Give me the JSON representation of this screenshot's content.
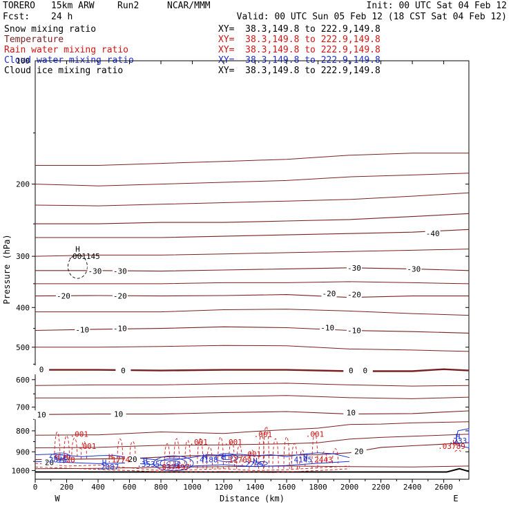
{
  "header": {
    "model": "TORERO",
    "resolution": "15km ARW",
    "run": "Run2",
    "org": "NCAR/MMM",
    "init": "Init: 00 UTC Sat 04 Feb 12",
    "fcst_label": "Fcst:",
    "fcst_value": "24 h",
    "valid": "Valid: 00 UTC Sun 05 Feb 12 (18 CST Sat 04 Feb 12)"
  },
  "legend": [
    {
      "name": "Snow mixing ratio",
      "xy": "XY=  38.3,149.8 to 222.9,149.8",
      "color": "#000000"
    },
    {
      "name": "Temperature",
      "xy": "XY=  38.3,149.8 to 222.9,149.8",
      "color": "#7a1f1f"
    },
    {
      "name": "Rain water mixing ratio",
      "xy": "XY=  38.3,149.8 to 222.9,149.8",
      "color": "#d01414"
    },
    {
      "name": "Cloud water mixing ratio",
      "xy": "XY=  38.3,149.8 to 222.9,149.8",
      "color": "#1b2fd1"
    },
    {
      "name": "Cloud ice mixing ratio",
      "xy": "XY=  38.3,149.8 to 222.9,149.8",
      "color": "#000000"
    }
  ],
  "chart_data": {
    "type": "line",
    "xlabel": "Distance (km)",
    "ylabel": "Pressure (hPa)",
    "xlim": [
      0,
      2760
    ],
    "ylim": [
      1050,
      100
    ],
    "y_scale": "log",
    "x_ticks": [
      0,
      200,
      400,
      600,
      800,
      1000,
      1200,
      1400,
      1600,
      1800,
      2000,
      2200,
      2400,
      2600
    ],
    "y_ticks": [
      200,
      300,
      400,
      500,
      600,
      700,
      800,
      900,
      1000
    ],
    "y_top_label": "100",
    "x_end_labels": {
      "left": "W",
      "right": "E"
    },
    "temperature_isotherms": [
      {
        "temp": -50,
        "points": [
          [
            0,
            250
          ],
          [
            400,
            250
          ],
          [
            800,
            248
          ],
          [
            1200,
            248
          ],
          [
            1600,
            246
          ],
          [
            2000,
            244
          ],
          [
            2400,
            240
          ],
          [
            2760,
            236
          ]
        ]
      },
      {
        "temp": -40,
        "points": [
          [
            0,
            270
          ],
          [
            400,
            270
          ],
          [
            800,
            270
          ],
          [
            1200,
            268
          ],
          [
            1600,
            266
          ],
          [
            2000,
            264
          ],
          [
            2400,
            262
          ],
          [
            2760,
            258
          ]
        ]
      },
      {
        "temp": -30,
        "points": [
          [
            0,
            325
          ],
          [
            400,
            325
          ],
          [
            800,
            326
          ],
          [
            1200,
            324
          ],
          [
            1600,
            322
          ],
          [
            2000,
            320
          ],
          [
            2400,
            322
          ],
          [
            2760,
            325
          ]
        ]
      },
      {
        "temp": -20,
        "points": [
          [
            0,
            375
          ],
          [
            400,
            374
          ],
          [
            800,
            375
          ],
          [
            1200,
            374
          ],
          [
            1600,
            372
          ],
          [
            2000,
            378
          ],
          [
            2400,
            375
          ],
          [
            2760,
            375
          ]
        ]
      },
      {
        "temp": -10,
        "points": [
          [
            0,
            455
          ],
          [
            400,
            452
          ],
          [
            800,
            450
          ],
          [
            1200,
            446
          ],
          [
            1600,
            448
          ],
          [
            2000,
            455
          ],
          [
            2400,
            458
          ],
          [
            2760,
            462
          ]
        ]
      },
      {
        "temp": 0,
        "points": [
          [
            0,
            568
          ],
          [
            400,
            568
          ],
          [
            800,
            570
          ],
          [
            1200,
            568
          ],
          [
            1600,
            568
          ],
          [
            2000,
            572
          ],
          [
            2400,
            572
          ],
          [
            2600,
            566
          ],
          [
            2760,
            570
          ]
        ]
      },
      {
        "temp": 10,
        "points": [
          [
            0,
            730
          ],
          [
            400,
            728
          ],
          [
            800,
            728
          ],
          [
            1200,
            722
          ],
          [
            1600,
            718
          ],
          [
            2000,
            728
          ],
          [
            2400,
            726
          ],
          [
            2760,
            715
          ]
        ]
      },
      {
        "temp": 20,
        "points": [
          [
            0,
            940
          ],
          [
            600,
            935
          ],
          [
            1000,
            920
          ],
          [
            1400,
            920
          ],
          [
            1800,
            915
          ],
          [
            2000,
            905
          ],
          [
            2200,
            878
          ],
          [
            2400,
            870
          ],
          [
            2600,
            862
          ],
          [
            2760,
            855
          ]
        ]
      }
    ],
    "other_isotherms": [
      {
        "points": [
          [
            0,
            180
          ],
          [
            400,
            180
          ],
          [
            800,
            178
          ],
          [
            1200,
            176
          ],
          [
            1600,
            174
          ],
          [
            2000,
            170
          ],
          [
            2400,
            168
          ],
          [
            2760,
            168
          ]
        ]
      },
      {
        "points": [
          [
            0,
            200
          ],
          [
            400,
            202
          ],
          [
            800,
            200
          ],
          [
            1200,
            198
          ],
          [
            1600,
            196
          ],
          [
            2000,
            192
          ],
          [
            2400,
            190
          ],
          [
            2760,
            188
          ]
        ]
      },
      {
        "points": [
          [
            0,
            225
          ],
          [
            400,
            226
          ],
          [
            800,
            224
          ],
          [
            1200,
            222
          ],
          [
            1600,
            220
          ],
          [
            2000,
            218
          ],
          [
            2400,
            214
          ],
          [
            2760,
            210
          ]
        ]
      },
      {
        "points": [
          [
            0,
            300
          ],
          [
            400,
            298
          ],
          [
            800,
            298
          ],
          [
            1200,
            296
          ],
          [
            1600,
            294
          ],
          [
            2000,
            292
          ],
          [
            2400,
            290
          ],
          [
            2760,
            288
          ]
        ]
      },
      {
        "points": [
          [
            0,
            350
          ],
          [
            400,
            350
          ],
          [
            800,
            350
          ],
          [
            1200,
            348
          ],
          [
            1600,
            348
          ],
          [
            2000,
            346
          ],
          [
            2400,
            348
          ],
          [
            2760,
            350
          ]
        ]
      },
      {
        "points": [
          [
            0,
            410
          ],
          [
            400,
            410
          ],
          [
            800,
            410
          ],
          [
            1200,
            405
          ],
          [
            1600,
            404
          ],
          [
            2000,
            408
          ],
          [
            2400,
            414
          ],
          [
            2760,
            418
          ]
        ]
      },
      {
        "points": [
          [
            0,
            500
          ],
          [
            400,
            500
          ],
          [
            800,
            498
          ],
          [
            1200,
            495
          ],
          [
            1600,
            496
          ],
          [
            2000,
            505
          ],
          [
            2400,
            508
          ],
          [
            2760,
            512
          ]
        ]
      },
      {
        "points": [
          [
            0,
            620
          ],
          [
            400,
            618
          ],
          [
            800,
            618
          ],
          [
            1200,
            614
          ],
          [
            1600,
            612
          ],
          [
            2000,
            618
          ],
          [
            2400,
            622
          ],
          [
            2760,
            620
          ]
        ]
      },
      {
        "points": [
          [
            0,
            665
          ],
          [
            400,
            665
          ],
          [
            800,
            664
          ],
          [
            1200,
            660
          ],
          [
            1600,
            656
          ],
          [
            2000,
            664
          ],
          [
            2400,
            668
          ],
          [
            2760,
            662
          ]
        ]
      },
      {
        "points": [
          [
            0,
            820
          ],
          [
            400,
            818
          ],
          [
            800,
            805
          ],
          [
            1000,
            808
          ],
          [
            1200,
            812
          ],
          [
            1400,
            802
          ],
          [
            1600,
            795
          ],
          [
            1800,
            788
          ],
          [
            2000,
            772
          ],
          [
            2200,
            770
          ],
          [
            2400,
            765
          ],
          [
            2760,
            760
          ]
        ]
      },
      {
        "points": [
          [
            0,
            880
          ],
          [
            400,
            878
          ],
          [
            800,
            868
          ],
          [
            1200,
            866
          ],
          [
            1600,
            860
          ],
          [
            1800,
            855
          ],
          [
            2000,
            838
          ],
          [
            2200,
            830
          ],
          [
            2400,
            825
          ],
          [
            2760,
            815
          ]
        ]
      },
      {
        "points": [
          [
            0,
            990
          ],
          [
            400,
            988
          ],
          [
            800,
            982
          ],
          [
            1200,
            978
          ],
          [
            1600,
            975
          ],
          [
            2000,
            978
          ],
          [
            2400,
            980
          ],
          [
            2760,
            975
          ]
        ]
      }
    ],
    "temp_labels": [
      {
        "text": "-30",
        "x": 380,
        "p": 326
      },
      {
        "text": "-30",
        "x": 540,
        "p": 326
      },
      {
        "text": "-30",
        "x": 2030,
        "p": 320
      },
      {
        "text": "-30",
        "x": 2410,
        "p": 322
      },
      {
        "text": "-40",
        "x": 2530,
        "p": 264
      },
      {
        "text": "-20",
        "x": 180,
        "p": 375
      },
      {
        "text": "-20",
        "x": 540,
        "p": 375
      },
      {
        "text": "-20",
        "x": 1870,
        "p": 370
      },
      {
        "text": "-20",
        "x": 2030,
        "p": 372
      },
      {
        "text": "-10",
        "x": 300,
        "p": 453
      },
      {
        "text": "-10",
        "x": 540,
        "p": 450
      },
      {
        "text": "-10",
        "x": 1860,
        "p": 448
      },
      {
        "text": "-10",
        "x": 2030,
        "p": 455
      },
      {
        "text": "0",
        "x": 40,
        "p": 567
      },
      {
        "text": "0",
        "x": 560,
        "p": 570
      },
      {
        "text": "0",
        "x": 2010,
        "p": 570
      },
      {
        "text": "0",
        "x": 2100,
        "p": 570
      },
      {
        "text": "10",
        "x": 40,
        "p": 730
      },
      {
        "text": "10",
        "x": 530,
        "p": 728
      },
      {
        "text": "10",
        "x": 2010,
        "p": 722
      },
      {
        "text": "20",
        "x": 2060,
        "p": 897
      },
      {
        "text": "20",
        "x": 90,
        "p": 955
      },
      {
        "text": "20",
        "x": 620,
        "p": 938
      }
    ],
    "rain_labels": [
      {
        "text": ".001",
        "x": 280,
        "p": 815
      },
      {
        "text": ".001",
        "x": 330,
        "p": 872
      },
      {
        "text": ".001",
        "x": 1040,
        "p": 852
      },
      {
        "text": ".001",
        "x": 1260,
        "p": 852
      },
      {
        "text": ".001",
        "x": 1450,
        "p": 816
      },
      {
        "text": ".001",
        "x": 1780,
        "p": 815
      },
      {
        "text": ".001",
        "x": 1380,
        "p": 912
      },
      {
        "text": ".03789",
        "x": 2650,
        "p": 872
      },
      {
        "text": ".1774",
        "x": 530,
        "p": 940
      },
      {
        "text": ".037497",
        "x": 880,
        "p": 980
      },
      {
        "text": ".11709",
        "x": 1290,
        "p": 942
      },
      {
        "text": ".2443",
        "x": 1820,
        "p": 940
      },
      {
        "text": ".28",
        "x": 210,
        "p": 940
      }
    ],
    "rain_highs": [
      {
        "x": 140,
        "p": 925
      },
      {
        "x": 195,
        "p": 925
      },
      {
        "x": 480,
        "p": 925
      },
      {
        "x": 2670,
        "p": 855
      }
    ],
    "cloud_labels": [
      {
        "text": ".2875",
        "x": 130,
        "p": 940
      },
      {
        "text": ".2087",
        "x": 460,
        "p": 980
      },
      {
        "text": ".3535",
        "x": 720,
        "p": 965
      },
      {
        "text": ".4188",
        "x": 1090,
        "p": 940
      },
      {
        "text": ".2295",
        "x": 1380,
        "p": 965
      },
      {
        "text": ".4145",
        "x": 1690,
        "p": 940
      },
      {
        "text": ".233",
        "x": 2690,
        "p": 845
      }
    ],
    "cloud_highs": [
      {
        "x": 440,
        "p": 955
      },
      {
        "x": 700,
        "p": 945
      },
      {
        "x": 900,
        "p": 965
      },
      {
        "x": 1080,
        "p": 925
      },
      {
        "x": 1200,
        "p": 925
      },
      {
        "x": 1400,
        "p": 945
      },
      {
        "x": 1720,
        "p": 925
      },
      {
        "x": 2690,
        "p": 825
      }
    ],
    "ice_labels": [
      {
        "text": ".001145",
        "x": 310,
        "p": 300
      }
    ],
    "ice_highs": [
      {
        "x": 270,
        "p": 288
      }
    ]
  }
}
